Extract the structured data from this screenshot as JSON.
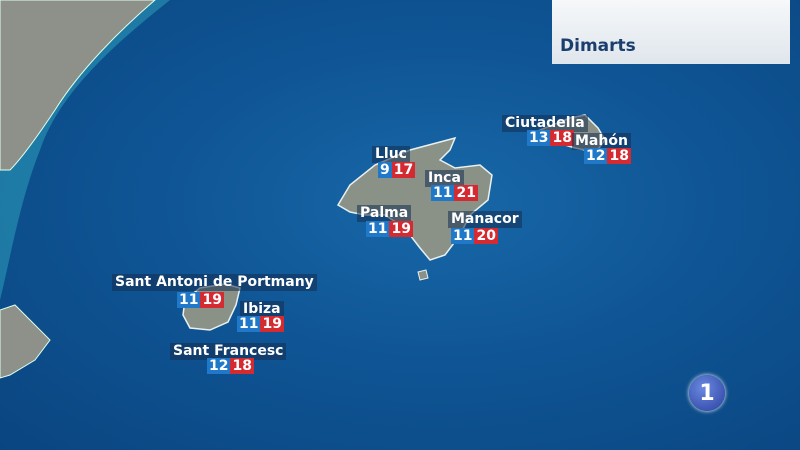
{
  "header": {
    "day": "Dimarts"
  },
  "logo": {
    "text": "1"
  },
  "colors": {
    "sea": "#0f5595",
    "land": "#8a9288",
    "min_temp": "#1f78c8",
    "max_temp": "#d42a32"
  },
  "cities": [
    {
      "name": "Lluc",
      "min": "9",
      "max": "17"
    },
    {
      "name": "Inca",
      "min": "11",
      "max": "21"
    },
    {
      "name": "Palma",
      "min": "11",
      "max": "19"
    },
    {
      "name": "Manacor",
      "min": "11",
      "max": "20"
    },
    {
      "name": "Ciutadella",
      "min": "13",
      "max": "18"
    },
    {
      "name": "Mahón",
      "min": "12",
      "max": "18"
    },
    {
      "name": "Sant Antoni de Portmany",
      "min": "11",
      "max": "19"
    },
    {
      "name": "Ibiza",
      "min": "11",
      "max": "19"
    },
    {
      "name": "Sant Francesc",
      "min": "12",
      "max": "18"
    }
  ]
}
